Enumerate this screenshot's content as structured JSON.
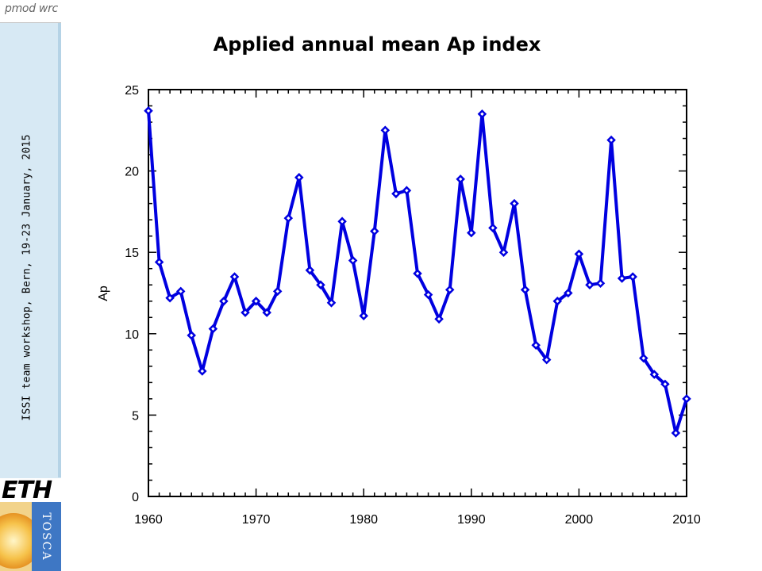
{
  "sidebar": {
    "logo_text": "pmod wrc",
    "workshop_text": "ISSI team workshop, Bern, 19-23 January, 2015",
    "eth_logo_text": "ETH",
    "tosca_logo_text": "TOSCA"
  },
  "chart_data": {
    "type": "line",
    "title": "Applied annual mean Ap index",
    "xlabel": "",
    "ylabel": "Ap",
    "xlim": [
      1960,
      2010
    ],
    "ylim": [
      0,
      25
    ],
    "xticks": [
      "1960",
      "1970",
      "1980",
      "1990",
      "2000",
      "2010"
    ],
    "yticks": [
      "0",
      "5",
      "10",
      "15",
      "20",
      "25"
    ],
    "grid": false,
    "line_color": "#0000e0",
    "x": [
      1960,
      1961,
      1962,
      1963,
      1964,
      1965,
      1966,
      1967,
      1968,
      1969,
      1970,
      1971,
      1972,
      1973,
      1974,
      1975,
      1976,
      1977,
      1978,
      1979,
      1980,
      1981,
      1982,
      1983,
      1984,
      1985,
      1986,
      1987,
      1988,
      1989,
      1990,
      1991,
      1992,
      1993,
      1994,
      1995,
      1996,
      1997,
      1998,
      1999,
      2000,
      2001,
      2002,
      2003,
      2004,
      2005,
      2006,
      2007,
      2008,
      2009,
      2010
    ],
    "values": [
      23.7,
      14.4,
      12.2,
      12.6,
      9.9,
      7.7,
      10.3,
      12.0,
      13.5,
      11.3,
      12.0,
      11.3,
      12.6,
      17.1,
      19.6,
      13.9,
      13.0,
      11.9,
      16.9,
      14.5,
      11.1,
      16.3,
      22.5,
      18.6,
      18.8,
      13.7,
      12.4,
      10.9,
      12.7,
      19.5,
      16.2,
      23.5,
      16.5,
      15.0,
      18.0,
      12.7,
      9.3,
      8.4,
      12.0,
      12.5,
      14.9,
      13.0,
      13.1,
      21.9,
      13.4,
      13.5,
      8.5,
      7.5,
      6.9,
      3.9,
      6.0
    ]
  }
}
